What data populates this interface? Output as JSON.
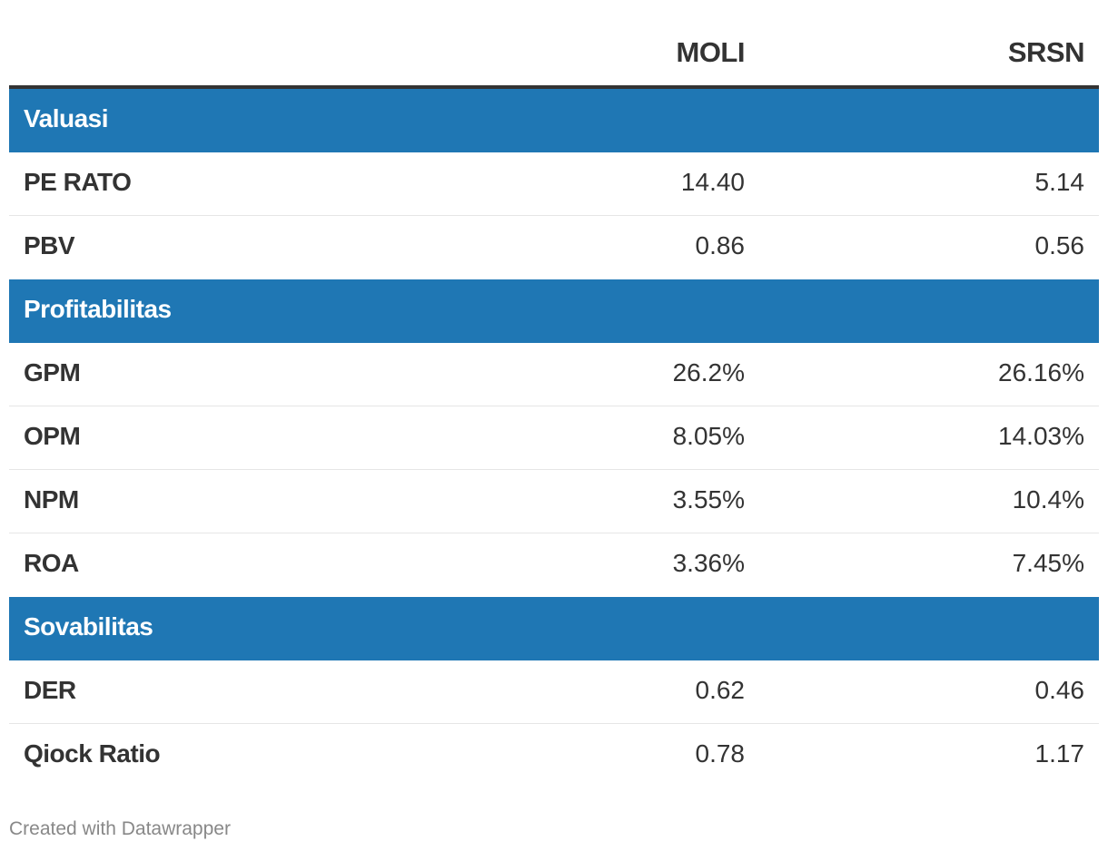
{
  "chart_data": {
    "type": "table",
    "columns": [
      "",
      "MOLI",
      "SRSN"
    ],
    "groups": [
      {
        "name": "Valuasi",
        "rows": [
          {
            "label": "PE RATO",
            "values": [
              "14.40",
              "5.14"
            ]
          },
          {
            "label": "PBV",
            "values": [
              "0.86",
              "0.56"
            ]
          }
        ]
      },
      {
        "name": "Profitabilitas",
        "rows": [
          {
            "label": "GPM",
            "values": [
              "26.2%",
              "26.16%"
            ]
          },
          {
            "label": "OPM",
            "values": [
              "8.05%",
              "14.03%"
            ]
          },
          {
            "label": "NPM",
            "values": [
              "3.55%",
              "10.4%"
            ]
          },
          {
            "label": "ROA",
            "values": [
              "3.36%",
              "7.45%"
            ]
          }
        ]
      },
      {
        "name": "Sovabilitas",
        "rows": [
          {
            "label": "DER",
            "values": [
              "0.62",
              "0.46"
            ]
          },
          {
            "label": "Qiock Ratio",
            "values": [
              "0.78",
              "1.17"
            ]
          }
        ]
      }
    ]
  },
  "colors": {
    "group_header_bg": "#1f77b4",
    "group_header_text": "#ffffff",
    "text": "#333333",
    "footer_text": "#888888"
  },
  "footer": {
    "credit": "Created with Datawrapper"
  }
}
